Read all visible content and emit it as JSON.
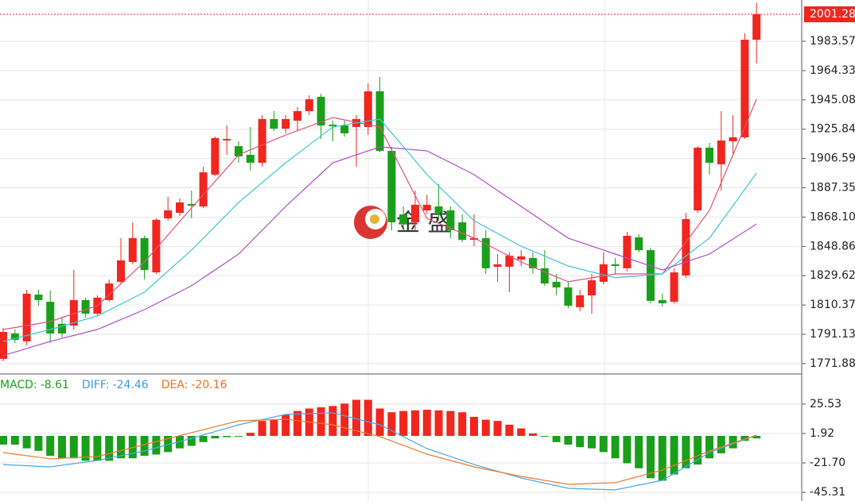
{
  "chart_data": [
    {
      "type": "candlestick",
      "ylim": [
        1765.6,
        2010.68
      ],
      "yticks": [
        1771.88,
        1791.13,
        1810.37,
        1829.62,
        1848.86,
        {
          "value": 1868.1,
          "label": "1868.10"
        },
        1887.35,
        1906.59,
        1925.84,
        1945.08,
        1964.33,
        1983.57
      ],
      "grid": true,
      "up_color": "#f0261f",
      "down_color": "#1a9f1a",
      "ohlc": [
        [
          1775.0,
          1795.3,
          1773.4,
          1792.7
        ],
        [
          1791.7,
          1794.3,
          1785.4,
          1787.5
        ],
        [
          1786.5,
          1820.4,
          1783.9,
          1817.8
        ],
        [
          1817.2,
          1820.4,
          1809.9,
          1813.6
        ],
        [
          1812.5,
          1819.9,
          1785.4,
          1791.7
        ],
        [
          1798.0,
          1802.1,
          1789.1,
          1791.7
        ],
        [
          1796.9,
          1833.4,
          1794.3,
          1813.6
        ],
        [
          1813.6,
          1815.2,
          1802.1,
          1804.7
        ],
        [
          1804.7,
          1816.7,
          1803.2,
          1815.2
        ],
        [
          1813.6,
          1827.2,
          1812.5,
          1824.5
        ],
        [
          1825.6,
          1854.3,
          1824.0,
          1839.7
        ],
        [
          1838.6,
          1864.7,
          1837.1,
          1854.3
        ],
        [
          1854.3,
          1855.8,
          1827.2,
          1833.4
        ],
        [
          1831.8,
          1867.3,
          1830.8,
          1866.3
        ],
        [
          1867.3,
          1881.4,
          1865.7,
          1872.5
        ],
        [
          1870.9,
          1880.3,
          1868.9,
          1877.7
        ],
        [
          1876.7,
          1885.5,
          1867.3,
          1875.6
        ],
        [
          1875.1,
          1901.2,
          1874.1,
          1897.5
        ],
        [
          1896.0,
          1921.0,
          1894.9,
          1920.0
        ],
        [
          1918.4,
          1928.3,
          1909.0,
          1919.4
        ],
        [
          1914.7,
          1917.9,
          1903.8,
          1908.0
        ],
        [
          1909.0,
          1927.3,
          1898.6,
          1903.8
        ],
        [
          1903.8,
          1935.1,
          1901.2,
          1932.5
        ],
        [
          1932.5,
          1937.7,
          1924.7,
          1926.2
        ],
        [
          1926.2,
          1935.1,
          1923.1,
          1932.5
        ],
        [
          1931.4,
          1940.3,
          1924.7,
          1937.7
        ],
        [
          1937.7,
          1948.1,
          1935.1,
          1945.5
        ],
        [
          1947.1,
          1949.2,
          1919.4,
          1928.3
        ],
        [
          1928.8,
          1931.4,
          1917.9,
          1927.8
        ],
        [
          1928.3,
          1931.4,
          1921.0,
          1923.1
        ],
        [
          1927.3,
          1935.1,
          1901.2,
          1932.5
        ],
        [
          1927.3,
          1955.9,
          1922.0,
          1950.7
        ],
        [
          1950.7,
          1960.1,
          1910.6,
          1911.6
        ],
        [
          1911.6,
          1914.2,
          1859.5,
          1864.7
        ],
        [
          1869.9,
          1875.1,
          1859.5,
          1863.6
        ],
        [
          1864.7,
          1885.5,
          1859.5,
          1876.2
        ],
        [
          1872.5,
          1882.9,
          1869.9,
          1876.2
        ],
        [
          1875.1,
          1889.7,
          1865.7,
          1870.9
        ],
        [
          1872.5,
          1875.1,
          1854.3,
          1859.5
        ],
        [
          1864.7,
          1869.9,
          1851.7,
          1853.2
        ],
        [
          1853.2,
          1869.9,
          1849.0,
          1854.3
        ],
        [
          1854.3,
          1859.5,
          1830.8,
          1834.5
        ],
        [
          1835.5,
          1843.8,
          1825.6,
          1837.1
        ],
        [
          1835.5,
          1844.9,
          1818.8,
          1842.8
        ],
        [
          1840.2,
          1846.4,
          1836.0,
          1842.3
        ],
        [
          1841.2,
          1844.9,
          1830.8,
          1834.5
        ],
        [
          1834.5,
          1846.4,
          1823.0,
          1824.5
        ],
        [
          1825.6,
          1830.8,
          1816.7,
          1821.9
        ],
        [
          1821.9,
          1825.6,
          1808.4,
          1809.9
        ],
        [
          1808.9,
          1820.4,
          1806.3,
          1816.7
        ],
        [
          1816.7,
          1830.8,
          1804.7,
          1826.6
        ],
        [
          1825.6,
          1844.9,
          1824.0,
          1837.1
        ],
        [
          1837.1,
          1841.2,
          1830.8,
          1836.0
        ],
        [
          1834.5,
          1858.4,
          1832.4,
          1855.8
        ],
        [
          1854.8,
          1856.9,
          1844.9,
          1846.4
        ],
        [
          1846.4,
          1848.0,
          1811.5,
          1813.1
        ],
        [
          1813.6,
          1817.8,
          1809.4,
          1811.5
        ],
        [
          1812.5,
          1834.5,
          1811.5,
          1831.8
        ],
        [
          1829.8,
          1870.9,
          1828.2,
          1866.8
        ],
        [
          1872.5,
          1914.7,
          1870.9,
          1913.7
        ],
        [
          1913.7,
          1916.8,
          1896.0,
          1903.8
        ],
        [
          1902.8,
          1937.7,
          1885.5,
          1918.4
        ],
        [
          1917.9,
          1935.1,
          1909.0,
          1920.5
        ],
        [
          1920.5,
          1988.8,
          1919.4,
          1984.6
        ],
        [
          1984.6,
          2009.0,
          1969.0,
          2001.28
        ]
      ],
      "moving_averages": [
        {
          "color": "#e2507c",
          "x": [
            0,
            4,
            8,
            12,
            16,
            20,
            24,
            28,
            32,
            36,
            40,
            44,
            48,
            52,
            56,
            60,
            64
          ],
          "values": [
            1794.3,
            1799.5,
            1809.9,
            1838.6,
            1874.1,
            1909.0,
            1922.0,
            1933.5,
            1927.3,
            1867.3,
            1854.3,
            1838.6,
            1825.6,
            1830.8,
            1830.8,
            1872.5,
            1945.5
          ]
        },
        {
          "color": "#3cc6d8",
          "x": [
            0,
            4,
            8,
            12,
            16,
            20,
            24,
            28,
            32,
            36,
            40,
            44,
            48,
            52,
            56,
            60,
            64
          ],
          "values": [
            1786.5,
            1794.3,
            1803.2,
            1818.8,
            1846.4,
            1877.7,
            1903.8,
            1927.3,
            1932.5,
            1896.0,
            1865.7,
            1849.0,
            1836.0,
            1828.2,
            1830.8,
            1854.3,
            1897.0
          ]
        },
        {
          "color": "#b04fc8",
          "x": [
            0,
            4,
            8,
            12,
            16,
            20,
            24,
            28,
            32,
            36,
            40,
            44,
            48,
            52,
            56,
            60,
            64
          ],
          "values": [
            1777.1,
            1786.5,
            1794.3,
            1807.3,
            1823.0,
            1843.8,
            1875.1,
            1903.8,
            1914.2,
            1911.6,
            1896.0,
            1875.1,
            1854.3,
            1843.8,
            1833.4,
            1843.8,
            1863.6
          ]
        }
      ],
      "last_price": 2001.28,
      "watermark": "金 盛"
    },
    {
      "type": "macd",
      "ylim": [
        -52.3,
        49.1
      ],
      "yticks": [
        -45.31,
        {
          "value": -21.7,
          "label": "-21.70"
        },
        1.92,
        25.53
      ],
      "grid": true,
      "indicators": [
        {
          "name": "MACD:",
          "value": -8.61,
          "color": "#1a9f1a"
        },
        {
          "name": "DIFF:",
          "value": -24.46,
          "color": "#3a9ee0"
        },
        {
          "name": "DEA:",
          "value": -20.16,
          "color": "#f07020"
        }
      ],
      "histogram": [
        -7,
        -7,
        -10,
        -12,
        -16,
        -18,
        -18,
        -20,
        -20,
        -20,
        -18,
        -18,
        -16,
        -15,
        -13,
        -10,
        -8,
        -5,
        -2,
        -1,
        -0.3,
        2.5,
        12,
        13,
        17,
        20,
        22,
        23,
        24,
        26,
        29,
        29,
        22,
        19,
        20,
        20.5,
        21,
        20.5,
        20,
        19,
        15.3,
        13,
        12,
        9,
        6,
        2,
        -0.3,
        -5,
        -7,
        -9,
        -10,
        -13,
        -18,
        -22,
        -26,
        -34,
        -36,
        -31,
        -26,
        -23,
        -18,
        -14,
        -10,
        -4,
        -2
      ],
      "lines": [
        {
          "color": "#4aa8e8",
          "x": [
            0,
            4,
            8,
            12,
            16,
            20,
            24,
            28,
            32,
            36,
            40,
            44,
            48,
            52,
            56,
            60,
            64
          ],
          "values": [
            -23.0,
            -24.9,
            -19.8,
            -12.1,
            -2.0,
            8.9,
            17.2,
            18.5,
            8.9,
            -10.2,
            -23.0,
            -33.8,
            -42.1,
            -43.4,
            -35.7,
            -13.4,
            0.6
          ]
        },
        {
          "color": "#f07a2a",
          "x": [
            0,
            4,
            8,
            12,
            16,
            20,
            24,
            28,
            32,
            36,
            40,
            44,
            48,
            52,
            56,
            60,
            64
          ],
          "values": [
            -13.4,
            -18.4,
            -16.6,
            -7.0,
            2.6,
            12.1,
            13.3,
            8.9,
            -0.6,
            -14.7,
            -24.9,
            -32.5,
            -38.9,
            -37.6,
            -27.4,
            -12.1,
            0.6
          ]
        }
      ]
    }
  ]
}
